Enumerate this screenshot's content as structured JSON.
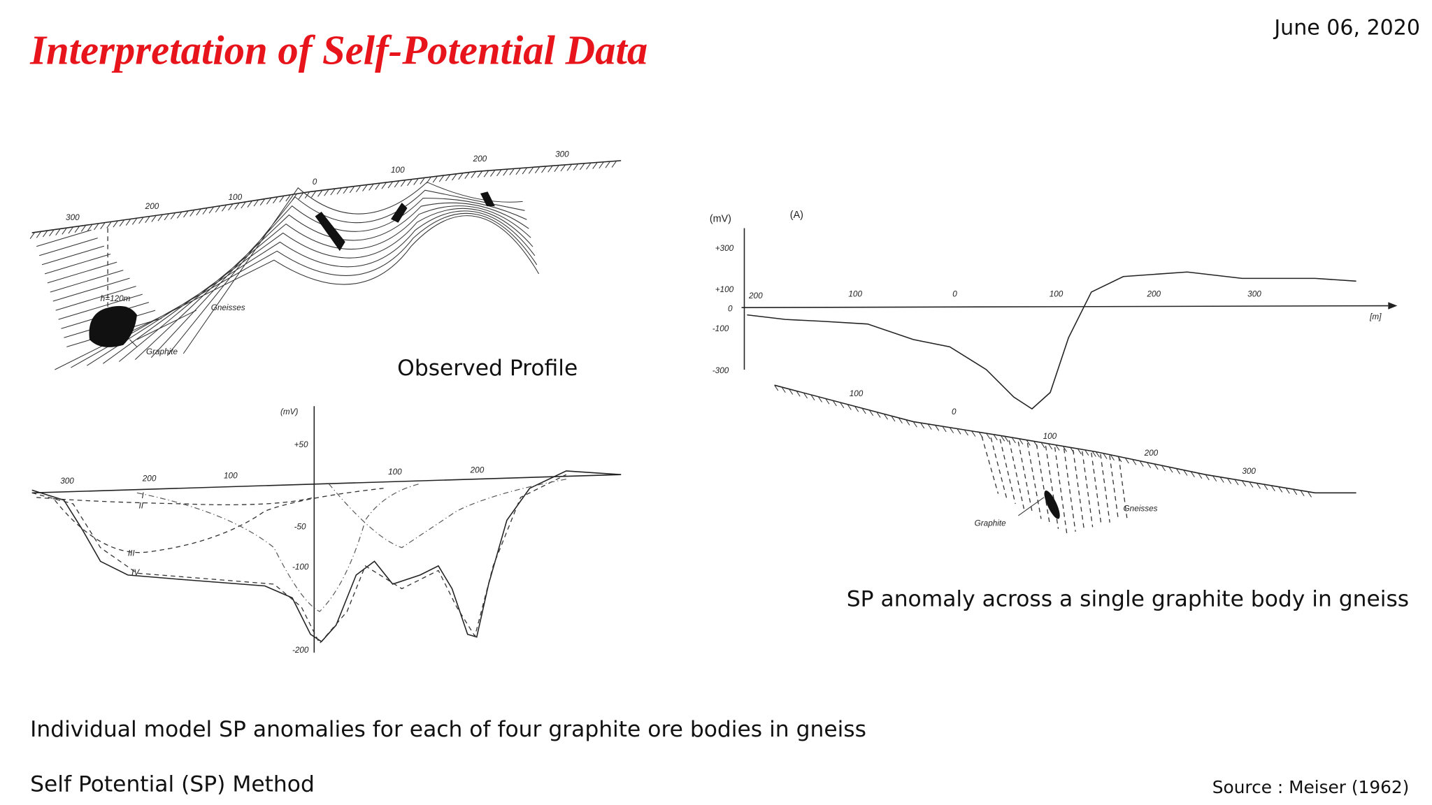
{
  "header": {
    "title": "Interpretation of Self-Potential Data",
    "date": "June 06, 2020"
  },
  "figures": [
    {
      "caption": "Observed Profile",
      "labels": [
        "300",
        "200",
        "100",
        "0",
        "100",
        "200",
        "300",
        "h=120m",
        "Gneisses",
        "Graphite"
      ]
    },
    {
      "caption": "Individual model SP anomalies for each of four graphite ore bodies in gneiss",
      "labels": [
        "(mV)",
        "+50",
        "-50",
        "-100",
        "-200",
        "300",
        "200",
        "100",
        "100",
        "200",
        "I",
        "II",
        "III",
        "IV"
      ]
    },
    {
      "caption": "SP anomaly across a single graphite body in gneiss",
      "labels": [
        "(mV)",
        "(A)",
        "+300",
        "+100",
        "0",
        "-100",
        "-300",
        "200",
        "100",
        "0",
        "100",
        "200",
        "300",
        "[m]",
        "100",
        "0",
        "100",
        "200",
        "300",
        "Gneisses",
        "Graphite"
      ]
    }
  ],
  "footer": {
    "subtitle": "Self Potential (SP) Method",
    "source": "Source : Meiser (1962)"
  }
}
